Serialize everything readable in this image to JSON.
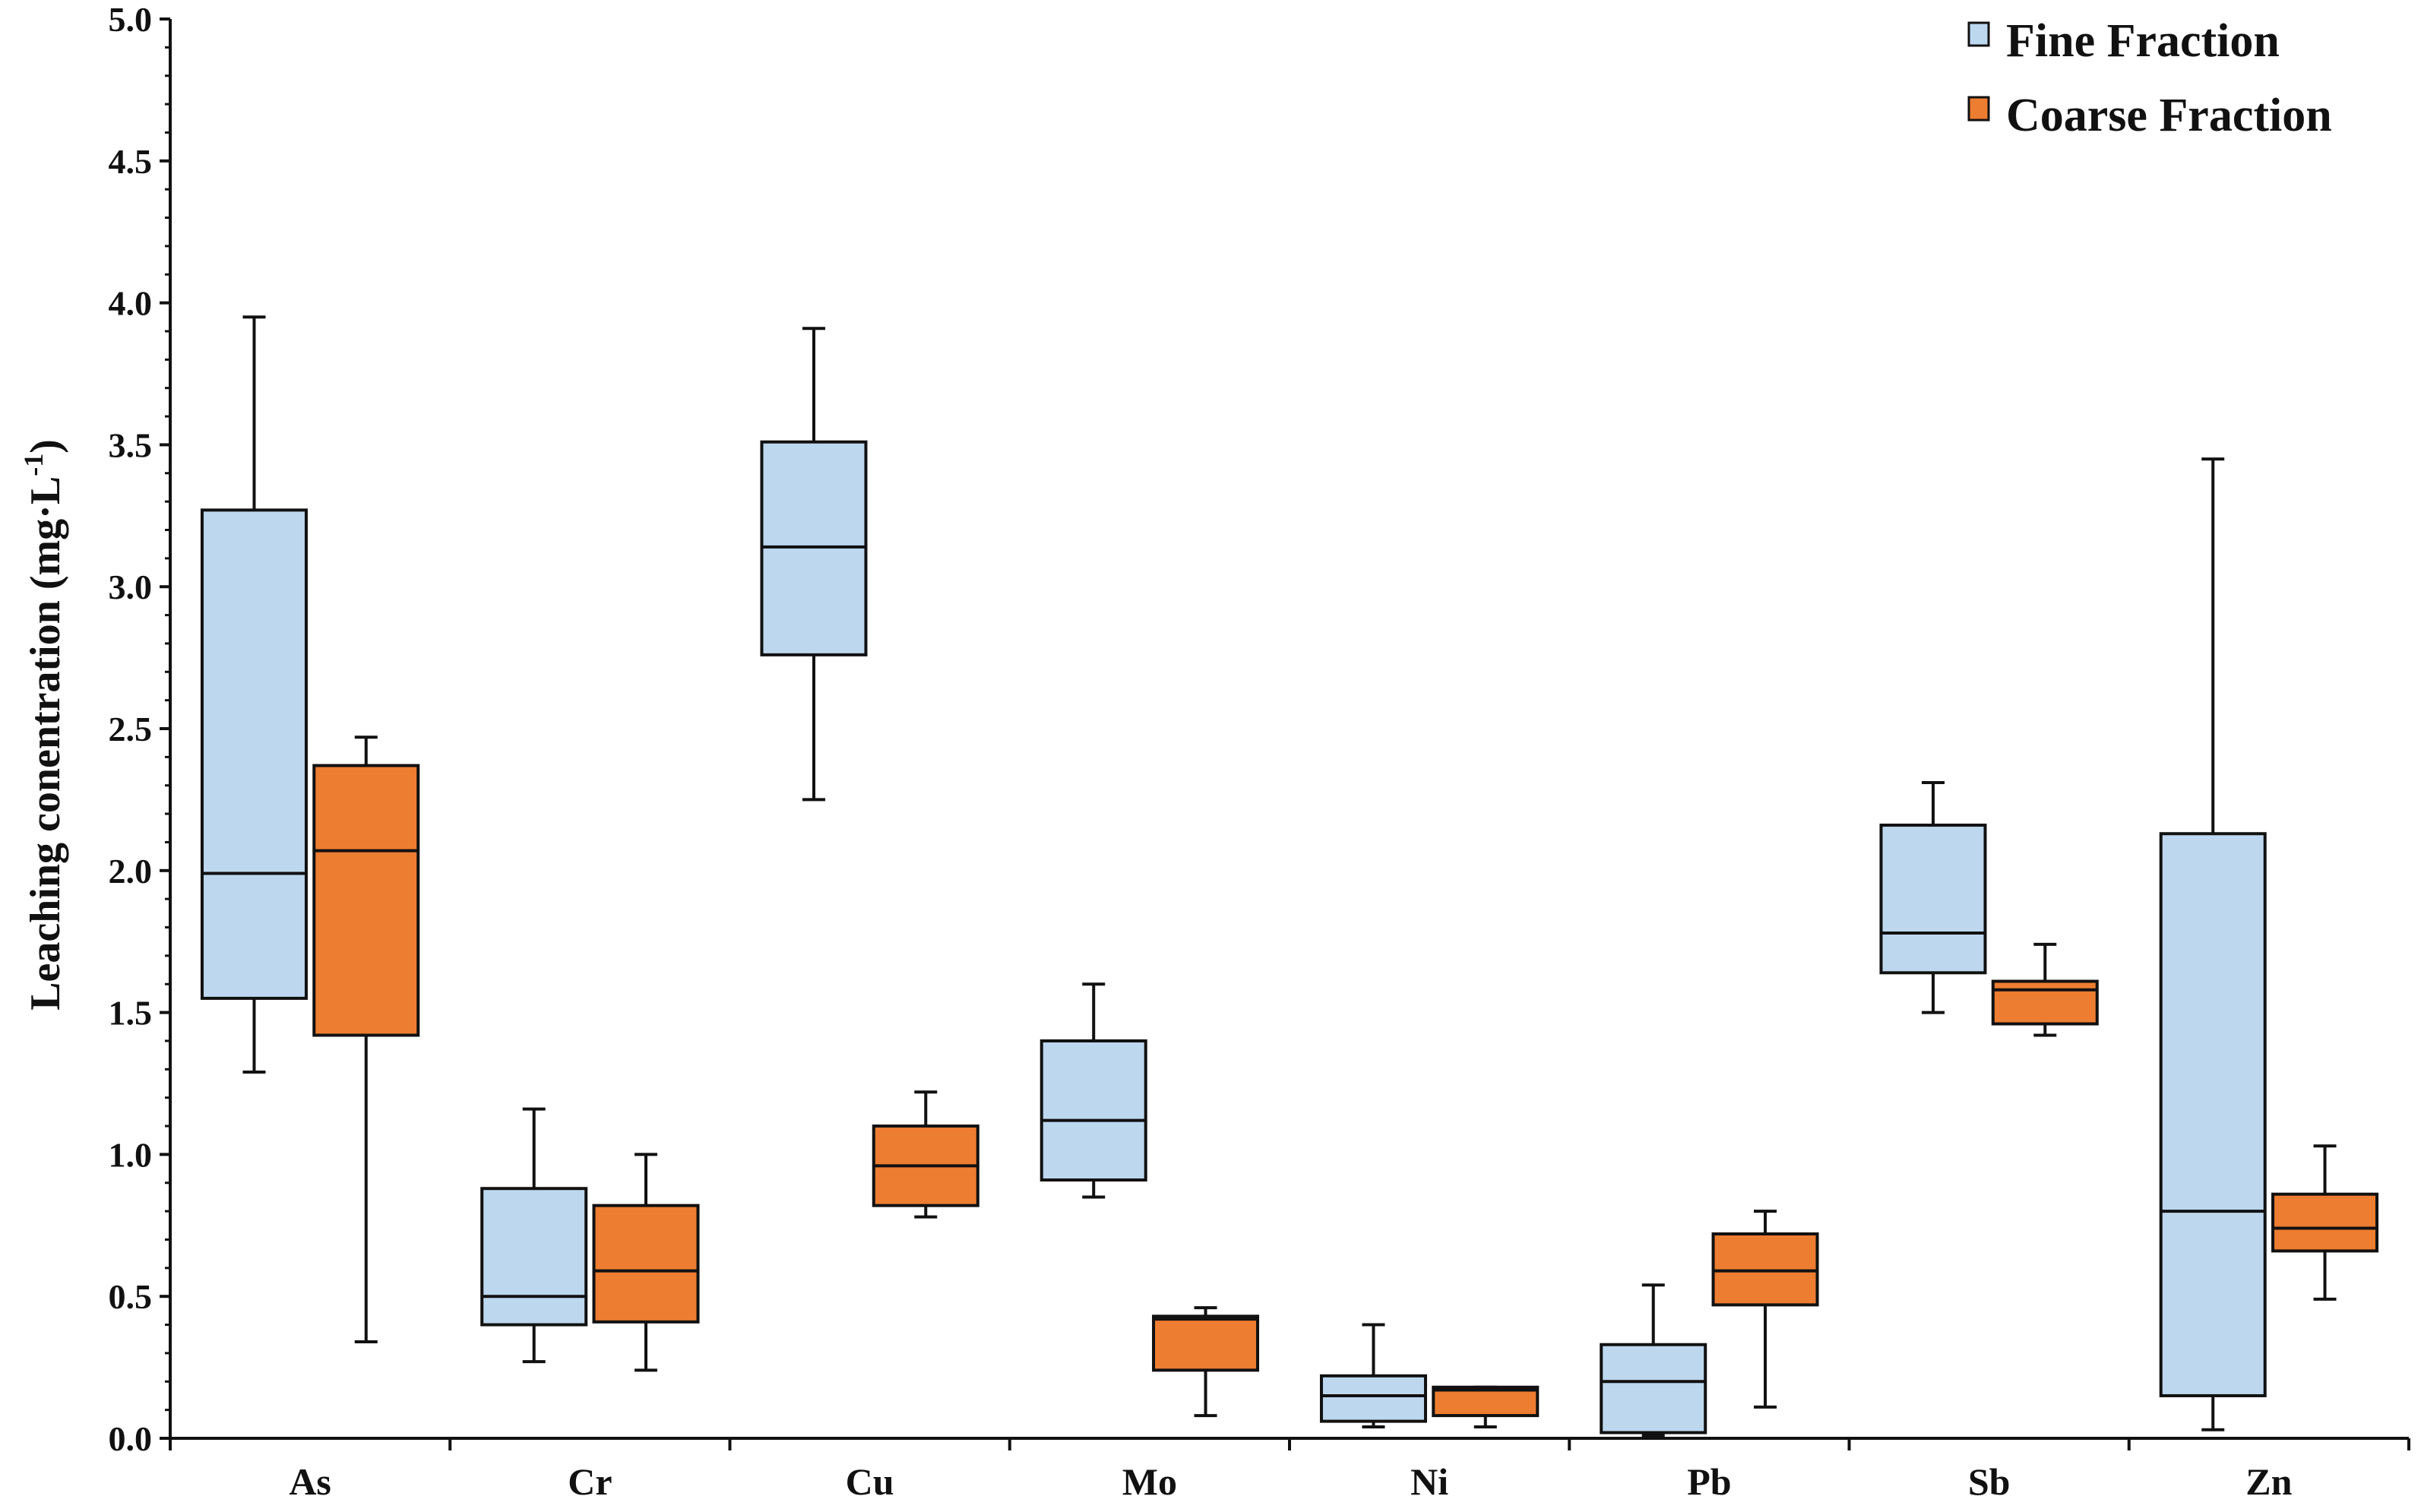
{
  "chart_data": {
    "type": "box",
    "title": "",
    "xlabel": "",
    "ylabel": "Leaching conentration (mg·L",
    "ylabel_superscript": "-1",
    "ylabel_suffix": ")",
    "ylim": [
      0,
      5
    ],
    "ytick_step": 0.5,
    "yticks": [
      "0.0",
      "0.5",
      "1.0",
      "1.5",
      "2.0",
      "2.5",
      "3.0",
      "3.5",
      "4.0",
      "4.5",
      "5.0"
    ],
    "categories": [
      "As",
      "Cr",
      "Cu",
      "Mo",
      "Ni",
      "Pb",
      "Sb",
      "Zn"
    ],
    "legend_position": "top-right",
    "series": [
      {
        "name": "Fine Fraction",
        "color": "#bdd7ee",
        "boxes": [
          {
            "category": "As",
            "min": 1.29,
            "q1": 1.55,
            "median": 1.99,
            "q3": 3.27,
            "max": 3.95
          },
          {
            "category": "Cr",
            "min": 0.27,
            "q1": 0.4,
            "median": 0.5,
            "q3": 0.88,
            "max": 1.16
          },
          {
            "category": "Cu",
            "min": 2.25,
            "q1": 2.76,
            "median": 3.14,
            "q3": 3.51,
            "max": 3.91
          },
          {
            "category": "Mo",
            "min": 0.85,
            "q1": 0.91,
            "median": 1.12,
            "q3": 1.4,
            "max": 1.6
          },
          {
            "category": "Ni",
            "min": 0.04,
            "q1": 0.06,
            "median": 0.15,
            "q3": 0.22,
            "max": 0.4
          },
          {
            "category": "Pb",
            "min": 0.01,
            "q1": 0.02,
            "median": 0.2,
            "q3": 0.33,
            "max": 0.54
          },
          {
            "category": "Sb",
            "min": 1.5,
            "q1": 1.64,
            "median": 1.78,
            "q3": 2.16,
            "max": 2.31
          },
          {
            "category": "Zn",
            "min": 0.03,
            "q1": 0.15,
            "median": 0.8,
            "q3": 2.13,
            "max": 3.45
          }
        ]
      },
      {
        "name": "Coarse Fraction",
        "color": "#ed7d31",
        "boxes": [
          {
            "category": "As",
            "min": 0.34,
            "q1": 1.42,
            "median": 2.07,
            "q3": 2.37,
            "max": 2.47
          },
          {
            "category": "Cr",
            "min": 0.24,
            "q1": 0.41,
            "median": 0.59,
            "q3": 0.82,
            "max": 1.0
          },
          {
            "category": "Cu",
            "min": 0.78,
            "q1": 0.82,
            "median": 0.96,
            "q3": 1.1,
            "max": 1.22
          },
          {
            "category": "Mo",
            "min": 0.08,
            "q1": 0.24,
            "median": 0.42,
            "q3": 0.43,
            "max": 0.46
          },
          {
            "category": "Ni",
            "min": 0.04,
            "q1": 0.08,
            "median": 0.17,
            "q3": 0.18,
            "max": 0.18
          },
          {
            "category": "Pb",
            "min": 0.11,
            "q1": 0.47,
            "median": 0.59,
            "q3": 0.72,
            "max": 0.8
          },
          {
            "category": "Sb",
            "min": 1.42,
            "q1": 1.46,
            "median": 1.58,
            "q3": 1.61,
            "max": 1.74
          },
          {
            "category": "Zn",
            "min": 0.49,
            "q1": 0.66,
            "median": 0.74,
            "q3": 0.86,
            "max": 1.03
          }
        ]
      }
    ]
  }
}
